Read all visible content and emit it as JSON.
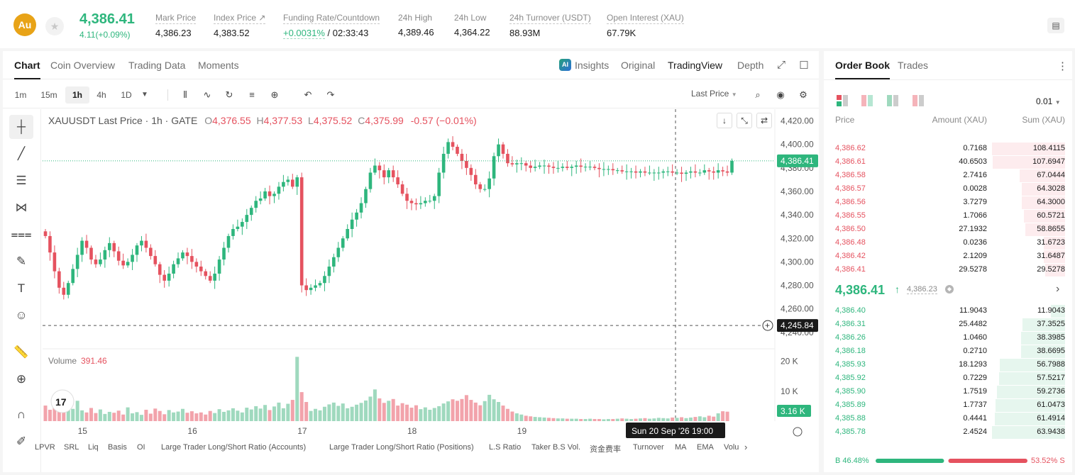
{
  "header": {
    "coin_symbol": "Au",
    "last_price": "4,386.41",
    "change": "4.11(+0.09%)",
    "stats": [
      {
        "label": "Mark Price",
        "value": "4,386.23"
      },
      {
        "label": "Index Price ↗",
        "value": "4,383.52"
      },
      {
        "label": "Funding Rate/Countdown",
        "value_green": "+0.0031%",
        "value": " / 02:33:43"
      },
      {
        "label": "24h High",
        "value": "4,389.46"
      },
      {
        "label": "24h Low",
        "value": "4,364.22"
      },
      {
        "label": "24h Turnover (USDT)",
        "value": "88.93M"
      },
      {
        "label": "Open Interest (XAU)",
        "value": "67.79K"
      }
    ]
  },
  "chart_tabs": [
    "Chart",
    "Coin Overview",
    "Trading Data",
    "Moments"
  ],
  "view_tabs": {
    "insights": "Insights",
    "original": "Original",
    "tradingview": "TradingView",
    "depth": "Depth",
    "ai_badge": "AI"
  },
  "timeframes": [
    "1m",
    "15m",
    "1h",
    "4h",
    "1D"
  ],
  "price_source": "Last Price",
  "legend": {
    "title": "XAUUSDT Last Price · 1h · GATE",
    "o_label": "O",
    "o": "4,376.55",
    "h_label": "H",
    "h": "4,377.53",
    "l_label": "L",
    "l": "4,375.52",
    "c_label": "C",
    "c": "4,375.99",
    "chg": "-0.57 (−0.01%)"
  },
  "volume_legend": {
    "label": "Volume",
    "value": "391.46"
  },
  "bottom_indicators": [
    "LPVR",
    "SRL",
    "Liq",
    "Basis",
    "OI",
    "Large Trader Long/Short Ratio (Accounts)",
    "Large Trader Long/Short Ratio (Positions)",
    "L.S Ratio",
    "Taker B.S Vol.",
    "资金费率",
    "Turnover",
    "MA",
    "EMA",
    "Volu"
  ],
  "chart_data": {
    "type": "candlestick",
    "title": "XAUUSDT Last Price · 1h · GATE",
    "interval": "1h",
    "y_ticks": [
      4420,
      4400,
      4380,
      4360,
      4340,
      4320,
      4300,
      4280,
      4260,
      4240
    ],
    "y_tick_labels": [
      "4,420.00",
      "4,400.00",
      "4,380.00",
      "4,360.00",
      "4,340.00",
      "4,320.00",
      "4,300.00",
      "4,280.00",
      "4,260.00",
      "4,240.00"
    ],
    "ylim": [
      4226,
      4430
    ],
    "x_tick_labels": [
      "15",
      "16",
      "17",
      "18",
      "19",
      "20"
    ],
    "x_tick_index": [
      8,
      32,
      56,
      80,
      104,
      128
    ],
    "close_series": [
      4322,
      4308,
      4292,
      4278,
      4272,
      4282,
      4294,
      4306,
      4318,
      4312,
      4302,
      4298,
      4302,
      4310,
      4316,
      4309,
      4301,
      4297,
      4300,
      4306,
      4314,
      4318,
      4312,
      4305,
      4298,
      4289,
      4284,
      4290,
      4298,
      4303,
      4308,
      4305,
      4300,
      4296,
      4292,
      4288,
      4284,
      4290,
      4302,
      4312,
      4322,
      4328,
      4330,
      4334,
      4340,
      4346,
      4352,
      4354,
      4360,
      4356,
      4358,
      4364,
      4368,
      4370,
      4364,
      4372,
      4280,
      4276,
      4278,
      4280,
      4282,
      4288,
      4296,
      4304,
      4312,
      4320,
      4328,
      4336,
      4342,
      4350,
      4362,
      4376,
      4382,
      4378,
      4372,
      4378,
      4372,
      4366,
      4358,
      4352,
      4350,
      4349,
      4350,
      4352,
      4352,
      4356,
      4376,
      4392,
      4402,
      4398,
      4392,
      4386,
      4380,
      4374,
      4366,
      4362,
      4362,
      4371,
      4390,
      4400,
      4392,
      4384,
      4383,
      4384,
      4384,
      4382,
      4380,
      4381,
      4382,
      4382,
      4381,
      4380,
      4380,
      4381,
      4380,
      4381,
      4382,
      4381,
      4381,
      4381,
      4380,
      4379,
      4379,
      4379,
      4378,
      4378,
      4377,
      4377,
      4377,
      4376,
      4377,
      4376,
      4376,
      4376,
      4376,
      4377,
      4377,
      4376,
      4376,
      4375,
      4376,
      4377,
      4376,
      4376,
      4378,
      4377,
      4376,
      4378,
      4377,
      4376,
      4386
    ],
    "current_price": "4,386.41",
    "crosshair_price": "4,245.84",
    "crosshair_time": "Sun 20 Sep '26   19:00",
    "volume_ticks": [
      "20 K",
      "10 K"
    ],
    "current_volume": "3.16 K",
    "volume_series": [
      5.2,
      3.8,
      6.4,
      4.9,
      3.3,
      5.6,
      4.1,
      6.8,
      3.6,
      2.9,
      4.4,
      2.7,
      3.9,
      2.4,
      3.1,
      2.8,
      3.5,
      2.2,
      4.6,
      2.6,
      3.0,
      2.1,
      3.8,
      2.5,
      4.2,
      3.4,
      2.3,
      3.7,
      2.9,
      3.2,
      4.1,
      2.8,
      3.3,
      2.6,
      2.9,
      2.2,
      3.4,
      2.7,
      4.0,
      3.1,
      3.6,
      4.3,
      3.5,
      2.9,
      4.5,
      3.9,
      5.0,
      4.2,
      5.4,
      3.7,
      4.9,
      6.2,
      4.3,
      5.8,
      7.1,
      21.5,
      9.7,
      6.4,
      3.4,
      4.1,
      3.6,
      4.8,
      5.6,
      6.2,
      5.1,
      5.9,
      4.3,
      4.8,
      5.5,
      6.1,
      6.9,
      8.2,
      10.6,
      7.6,
      6.1,
      6.8,
      7.4,
      5.2,
      6.0,
      5.5,
      4.5,
      5.3,
      4.0,
      4.6,
      3.8,
      4.4,
      5.0,
      5.9,
      6.6,
      7.3,
      6.8,
      7.4,
      8.7,
      7.1,
      6.2,
      5.3,
      6.7,
      8.8,
      7.3,
      6.4,
      5.2,
      4.1,
      3.2,
      2.6,
      2.2,
      1.8,
      1.6,
      1.4,
      1.3,
      1.2,
      1.1,
      1.0,
      0.9,
      0.9,
      0.8,
      0.8,
      0.8,
      0.7,
      0.7,
      0.8,
      0.7,
      0.7,
      0.6,
      0.7,
      0.7,
      0.8,
      0.9,
      0.8,
      0.7,
      0.8,
      0.9,
      1.0,
      0.8,
      0.9,
      1.1,
      1.0,
      0.9,
      1.2,
      1.1,
      1.3,
      1.0,
      1.2,
      1.4,
      1.6,
      1.3,
      1.8,
      1.5,
      2.6,
      3.3,
      3.16
    ]
  },
  "order_book": {
    "tabs": [
      "Order Book",
      "Trades"
    ],
    "precision": "0.01",
    "headers": {
      "price": "Price",
      "amount": "Amount (XAU)",
      "sum": "Sum (XAU)"
    },
    "asks": [
      {
        "price": "4,386.62",
        "amount": "0.7168",
        "sum": "108.4115",
        "depth": 1.0
      },
      {
        "price": "4,386.61",
        "amount": "40.6503",
        "sum": "107.6947",
        "depth": 0.99
      },
      {
        "price": "4,386.58",
        "amount": "2.7416",
        "sum": "67.0444",
        "depth": 0.62
      },
      {
        "price": "4,386.57",
        "amount": "0.0028",
        "sum": "64.3028",
        "depth": 0.59
      },
      {
        "price": "4,386.56",
        "amount": "3.7279",
        "sum": "64.3000",
        "depth": 0.59
      },
      {
        "price": "4,386.55",
        "amount": "1.7066",
        "sum": "60.5721",
        "depth": 0.56
      },
      {
        "price": "4,386.50",
        "amount": "27.1932",
        "sum": "58.8655",
        "depth": 0.54
      },
      {
        "price": "4,386.48",
        "amount": "0.0236",
        "sum": "31.6723",
        "depth": 0.29
      },
      {
        "price": "4,386.42",
        "amount": "2.1209",
        "sum": "31.6487",
        "depth": 0.29
      },
      {
        "price": "4,386.41",
        "amount": "29.5278",
        "sum": "29.5278",
        "depth": 0.27
      }
    ],
    "mid_price": "4,386.41",
    "mid_arrow": "↑",
    "mark_price": "4,386.23",
    "bids": [
      {
        "price": "4,386.40",
        "amount": "11.9043",
        "sum": "11.9043",
        "depth": 0.19
      },
      {
        "price": "4,386.31",
        "amount": "25.4482",
        "sum": "37.3525",
        "depth": 0.58
      },
      {
        "price": "4,386.26",
        "amount": "1.0460",
        "sum": "38.3985",
        "depth": 0.6
      },
      {
        "price": "4,386.18",
        "amount": "0.2710",
        "sum": "38.6695",
        "depth": 0.6
      },
      {
        "price": "4,385.93",
        "amount": "18.1293",
        "sum": "56.7988",
        "depth": 0.89
      },
      {
        "price": "4,385.92",
        "amount": "0.7229",
        "sum": "57.5217",
        "depth": 0.9
      },
      {
        "price": "4,385.90",
        "amount": "1.7519",
        "sum": "59.2736",
        "depth": 0.93
      },
      {
        "price": "4,385.89",
        "amount": "1.7737",
        "sum": "61.0473",
        "depth": 0.95
      },
      {
        "price": "4,385.88",
        "amount": "0.4441",
        "sum": "61.4914",
        "depth": 0.96
      },
      {
        "price": "4,385.78",
        "amount": "2.4524",
        "sum": "63.9438",
        "depth": 1.0
      }
    ],
    "buy_ratio": "B 46.48%",
    "sell_ratio": "53.52% S",
    "buy_fraction": 0.4648,
    "colors": {
      "up": "#2eb67d",
      "down": "#e5525f",
      "up_bg": "#e6f6ee",
      "down_bg": "#fdecee"
    }
  }
}
